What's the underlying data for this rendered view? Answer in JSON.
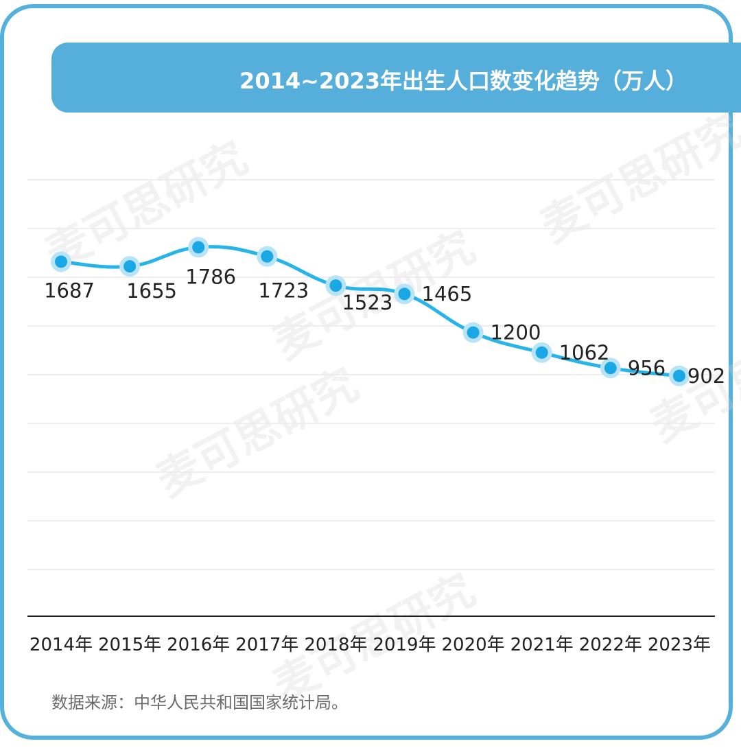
{
  "title": "2014~2023年出生人口数变化趋势（万人）",
  "source": "数据来源：中华人民共和国国家统计局。",
  "watermark": "麦可思研究",
  "colors": {
    "border": "#56b0dc",
    "title_bar": "#56aedb",
    "line": "#27b4e8",
    "point": "#1aa7e6",
    "halo": "#b9e4f7",
    "grid": "#e9e9e9",
    "axis": "#222222",
    "label": "#222222"
  },
  "chart_data": {
    "type": "line",
    "categories": [
      "2014年",
      "2015年",
      "2016年",
      "2017年",
      "2018年",
      "2019年",
      "2020年",
      "2021年",
      "2022年",
      "2023年"
    ],
    "values": [
      1687,
      1655,
      1786,
      1723,
      1523,
      1465,
      1200,
      1062,
      956,
      902
    ],
    "data_labels": [
      "1687",
      "1655",
      "1786",
      "1723",
      "1523",
      "1465",
      "1200",
      "1062",
      "956",
      "902"
    ],
    "ylim": [
      -750,
      2250
    ],
    "grid": true,
    "smooth": true,
    "legend": "none"
  }
}
